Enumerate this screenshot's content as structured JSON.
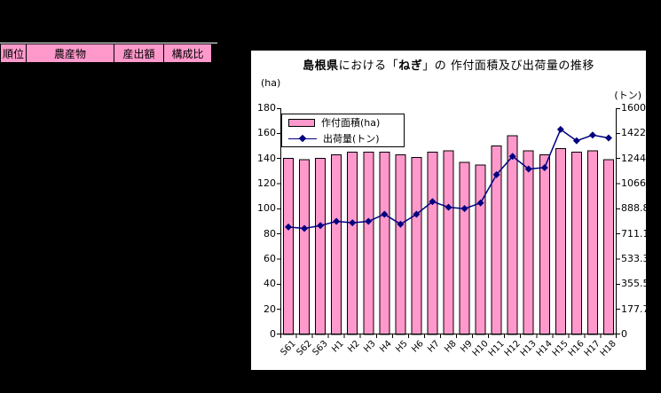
{
  "table": {
    "headers": [
      "順位",
      "農産物",
      "産出額",
      "構成比"
    ]
  },
  "chart": {
    "left_axis_unit": "(ha)",
    "right_axis_unit": "(トン)",
    "title_segments": [
      {
        "text": "島根県",
        "bold": true
      },
      {
        "text": "における「",
        "bold": false
      },
      {
        "text": "ねぎ",
        "bold": true
      },
      {
        "text": "」の 作付面積及び出荷量の推移",
        "bold": false
      }
    ]
  },
  "chart_data": {
    "type": "bar",
    "subtype": "bar+line-combo",
    "title": "島根県における「ねぎ」の作付面積及び出荷量の推移",
    "categories": [
      "S61",
      "S62",
      "S63",
      "H1",
      "H2",
      "H3",
      "H4",
      "H5",
      "H6",
      "H7",
      "H8",
      "H9",
      "H10",
      "H11",
      "H12",
      "H13",
      "H14",
      "H15",
      "H16",
      "H17",
      "H18"
    ],
    "series": [
      {
        "name": "作付面積(ha)",
        "type": "bar",
        "axis": "left",
        "values": [
          140,
          139,
          140,
          143,
          145,
          145,
          145,
          143,
          141,
          145,
          146,
          137,
          135,
          150,
          158,
          146,
          143,
          148,
          145,
          146,
          139
        ]
      },
      {
        "name": "出荷量(トン)",
        "type": "line",
        "axis": "right",
        "values": [
          760,
          750,
          770,
          800,
          790,
          800,
          850,
          780,
          850,
          940,
          900,
          890,
          930,
          1130,
          1260,
          1170,
          1180,
          1450,
          1370,
          1410,
          1390
        ]
      }
    ],
    "left_axis": {
      "unit": "(ha)",
      "min": 0,
      "max": 180,
      "step": 20
    },
    "right_axis": {
      "unit": "(トン)",
      "min": 0,
      "max": 1600,
      "step": 200
    },
    "legend_position": "top-left-inside",
    "gridlines": false,
    "colors": {
      "bar_fill": "#FF99CC",
      "bar_border": "#000000",
      "line": "#000080",
      "chart_background": "#FFFFFF",
      "page_background": "#000000",
      "text": "#000000"
    }
  }
}
